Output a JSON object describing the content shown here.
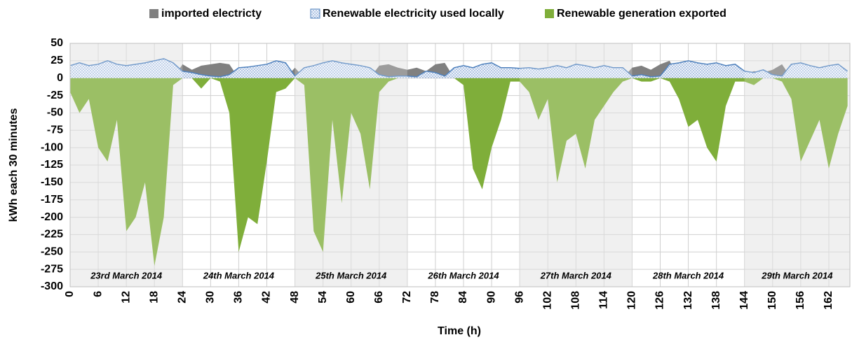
{
  "chart_data": {
    "type": "area",
    "x_label": "Time (h)",
    "y_label": "kWh each 30 minutes",
    "xlim": [
      0,
      166.5
    ],
    "ylim": [
      -300,
      50
    ],
    "xticks": [
      0,
      6,
      12,
      18,
      24,
      30,
      36,
      42,
      48,
      54,
      60,
      66,
      72,
      78,
      84,
      90,
      96,
      102,
      108,
      114,
      120,
      126,
      132,
      138,
      144,
      150,
      156,
      162
    ],
    "yticks": [
      -300,
      -275,
      -250,
      -225,
      -200,
      -175,
      -150,
      -125,
      -100,
      -75,
      -50,
      -25,
      0,
      25,
      50
    ],
    "grid": true,
    "legend": "top",
    "day_bands": [
      {
        "label": "23rd March 2014",
        "start": 0,
        "end": 24,
        "shaded": true
      },
      {
        "label": "24th March 2014",
        "start": 24,
        "end": 48,
        "shaded": false
      },
      {
        "label": "25th March 2014",
        "start": 48,
        "end": 72,
        "shaded": true
      },
      {
        "label": "26th March 2014",
        "start": 72,
        "end": 96,
        "shaded": false
      },
      {
        "label": "27th March 2014",
        "start": 96,
        "end": 120,
        "shaded": true
      },
      {
        "label": "28th March 2014",
        "start": 120,
        "end": 144,
        "shaded": false
      },
      {
        "label": "29th March 2014",
        "start": 144,
        "end": 168,
        "shaded": true
      }
    ],
    "x": [
      0,
      2,
      4,
      6,
      8,
      10,
      12,
      14,
      16,
      18,
      20,
      22,
      24,
      26,
      28,
      30,
      32,
      34,
      36,
      38,
      40,
      42,
      44,
      46,
      48,
      50,
      52,
      54,
      56,
      58,
      60,
      62,
      64,
      66,
      68,
      70,
      72,
      74,
      76,
      78,
      80,
      82,
      84,
      86,
      88,
      90,
      92,
      94,
      96,
      98,
      100,
      102,
      104,
      106,
      108,
      110,
      112,
      114,
      116,
      118,
      120,
      122,
      124,
      126,
      128,
      130,
      132,
      134,
      136,
      138,
      140,
      142,
      144,
      146,
      148,
      150,
      152,
      154,
      156,
      158,
      160,
      162,
      164,
      166
    ],
    "series": [
      {
        "name": "imported electricty",
        "color": "#808080",
        "values": [
          0,
          0,
          0,
          0,
          0,
          0,
          0,
          0,
          0,
          0,
          0,
          0,
          20,
          12,
          18,
          20,
          22,
          20,
          0,
          0,
          0,
          0,
          0,
          0,
          15,
          0,
          0,
          0,
          0,
          0,
          0,
          0,
          0,
          18,
          20,
          15,
          12,
          15,
          10,
          20,
          22,
          0,
          0,
          0,
          0,
          0,
          0,
          0,
          0,
          0,
          0,
          0,
          0,
          0,
          0,
          0,
          0,
          0,
          0,
          0,
          15,
          18,
          12,
          20,
          25,
          0,
          0,
          0,
          0,
          0,
          0,
          0,
          5,
          10,
          8,
          12,
          20,
          0,
          0,
          0,
          0,
          0,
          0,
          0
        ]
      },
      {
        "name": "Renewable electricity used locally",
        "color": "#4f81bd",
        "values": [
          18,
          22,
          18,
          20,
          25,
          20,
          18,
          20,
          22,
          25,
          28,
          22,
          10,
          8,
          5,
          3,
          2,
          5,
          15,
          16,
          18,
          20,
          25,
          22,
          3,
          15,
          18,
          22,
          25,
          22,
          20,
          18,
          15,
          5,
          2,
          3,
          3,
          2,
          10,
          8,
          3,
          15,
          18,
          15,
          20,
          22,
          15,
          15,
          14,
          15,
          13,
          15,
          18,
          15,
          20,
          18,
          15,
          18,
          15,
          15,
          3,
          5,
          2,
          3,
          20,
          22,
          25,
          22,
          20,
          22,
          18,
          20,
          10,
          8,
          12,
          5,
          3,
          20,
          22,
          18,
          15,
          18,
          20,
          10
        ]
      },
      {
        "name": "Renewable generation exported",
        "color": "#7fae3a",
        "values": [
          -20,
          -50,
          -30,
          -100,
          -120,
          -60,
          -220,
          -200,
          -150,
          -270,
          -200,
          -10,
          0,
          0,
          -15,
          0,
          -5,
          -50,
          -250,
          -200,
          -210,
          -120,
          -20,
          -15,
          0,
          -10,
          -220,
          -250,
          -60,
          -180,
          -50,
          -80,
          -160,
          -20,
          -5,
          0,
          0,
          0,
          0,
          0,
          0,
          0,
          -10,
          -130,
          -160,
          -100,
          -60,
          -5,
          -5,
          -20,
          -60,
          -30,
          -150,
          -90,
          -80,
          -130,
          -60,
          -40,
          -20,
          -5,
          0,
          -5,
          -5,
          0,
          -5,
          -30,
          -70,
          -60,
          -100,
          -120,
          -40,
          -5,
          -5,
          -10,
          0,
          0,
          -5,
          -30,
          -120,
          -90,
          -60,
          -130,
          -80,
          -40
        ]
      }
    ]
  }
}
